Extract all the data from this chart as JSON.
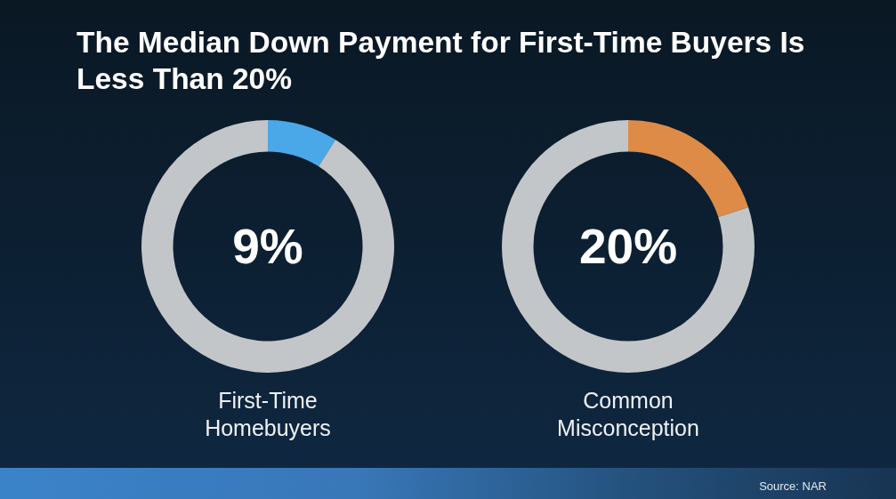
{
  "chart_data": [
    {
      "type": "donut",
      "title": "The Median Down Payment for First-Time Buyers Is Less Than 20%",
      "xlabel": "First-Time Homebuyers",
      "categories": [
        null,
        null
      ],
      "values": [
        9,
        91
      ],
      "colors": [
        "#4aa8e8",
        "#c3c6c8"
      ],
      "annotations": [
        "9%"
      ]
    },
    {
      "type": "donut",
      "xlabel": "Common Misconception",
      "categories": [
        null,
        null
      ],
      "values": [
        20,
        80
      ],
      "colors": [
        "#dd8b47",
        "#c3c6c8"
      ],
      "annotations": [
        "20%",
        "Source: NAR"
      ]
    }
  ]
}
